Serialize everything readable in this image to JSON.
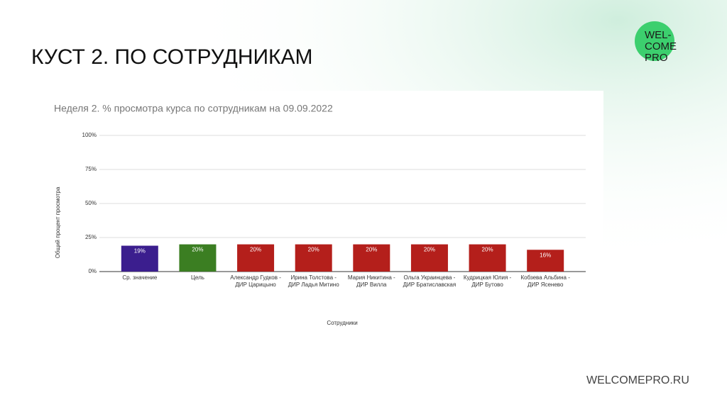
{
  "slide": {
    "title": "КУСТ 2. ПО СОТРУДНИКАМ",
    "logo": [
      "WEL-",
      "COME",
      "PRO"
    ],
    "footer": "WELCOMEPRO.RU"
  },
  "chart_data": {
    "type": "bar",
    "title": "Неделя 2. % просмотра курса по сотрудникам на 09.09.2022",
    "x_label": "Сотрудники",
    "y_label": "Общий процент просмотра",
    "categories": [
      "Ср. значение",
      "Цель",
      "Александр Гудков - ДИР Царицыно",
      "Ирина Толстова - ДИР Ладья Митино",
      "Мария Никитина - ДИР Вилла",
      "Ольга Украинцева - ДИР Братиславская",
      "Кудрицкая Юлия - ДИР Бутово",
      "Кобзева Альбина - ДИР Ясенево"
    ],
    "values": [
      19,
      20,
      20,
      20,
      20,
      20,
      20,
      16
    ],
    "value_labels": [
      "19%",
      "20%",
      "20%",
      "20%",
      "20%",
      "20%",
      "20%",
      "16%"
    ],
    "colors": [
      "#3b1e8e",
      "#3b7e22",
      "#b41f1b",
      "#b41f1b",
      "#b41f1b",
      "#b41f1b",
      "#b41f1b",
      "#b41f1b"
    ],
    "ylim": [
      0,
      100
    ],
    "yticks": [
      {
        "value": 0,
        "label": "0%"
      },
      {
        "value": 25,
        "label": "25%"
      },
      {
        "value": 50,
        "label": "50%"
      },
      {
        "value": 75,
        "label": "75%"
      },
      {
        "value": 100,
        "label": "100%"
      }
    ],
    "grid": true
  }
}
